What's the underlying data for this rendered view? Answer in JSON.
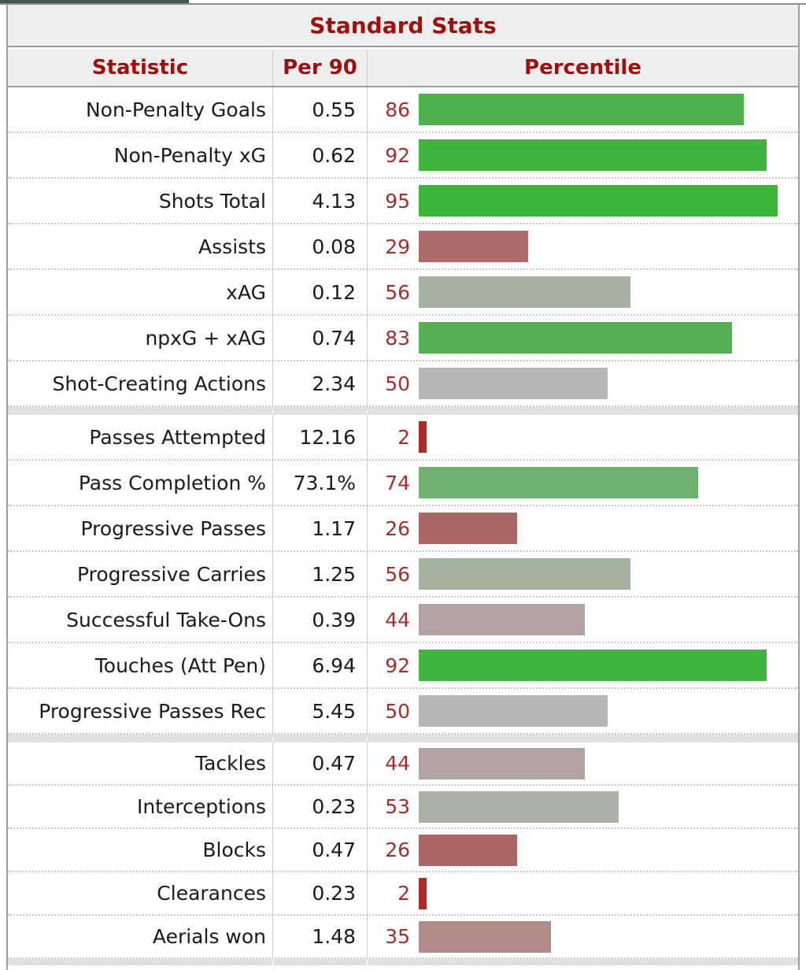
{
  "title": "Standard Stats",
  "columns": {
    "statistic": "Statistic",
    "per90": "Per 90",
    "percentile": "Percentile"
  },
  "colors": {
    "header_text_red": "#a00e0e",
    "percentile_number_red": "#a42d2d",
    "header_background": "#eeeeee",
    "separator_band": "#e0e0e0",
    "outer_border": "#9c9c9c",
    "tab_remnant": "#46554c",
    "bar_green_high": "#3bb43b",
    "bar_gray_mid": "#b6b6b6",
    "bar_red_low": "#b12828"
  },
  "chart_data": {
    "type": "bar",
    "orientation": "horizontal",
    "title": "Standard Stats",
    "xlabel": "Percentile",
    "xlim": [
      0,
      100
    ],
    "legend": "none",
    "groups": [
      [
        {
          "statistic": "Non-Penalty Goals",
          "per90": "0.55",
          "percentile": 86,
          "bar_color": "#4cb04c"
        },
        {
          "statistic": "Non-Penalty xG",
          "per90": "0.62",
          "percentile": 92,
          "bar_color": "#3fb43f"
        },
        {
          "statistic": "Shots Total",
          "per90": "4.13",
          "percentile": 95,
          "bar_color": "#3bb63b"
        },
        {
          "statistic": "Assists",
          "per90": "0.08",
          "percentile": 29,
          "bar_color": "#ad6c6c"
        },
        {
          "statistic": "xAG",
          "per90": "0.12",
          "percentile": 56,
          "bar_color": "#a4b29f"
        },
        {
          "statistic": "npxG + xAG",
          "per90": "0.74",
          "percentile": 83,
          "bar_color": "#54ae54"
        },
        {
          "statistic": "Shot-Creating Actions",
          "per90": "2.34",
          "percentile": 50,
          "bar_color": "#b6b6b6"
        }
      ],
      [
        {
          "statistic": "Passes Attempted",
          "per90": "12.16",
          "percentile": 2,
          "bar_color": "#b12828"
        },
        {
          "statistic": "Pass Completion %",
          "per90": "73.1%",
          "percentile": 74,
          "bar_color": "#70b170"
        },
        {
          "statistic": "Progressive Passes",
          "per90": "1.17",
          "percentile": 26,
          "bar_color": "#ab6565"
        },
        {
          "statistic": "Progressive Carries",
          "per90": "1.25",
          "percentile": 56,
          "bar_color": "#a4b29f"
        },
        {
          "statistic": "Successful Take-Ons",
          "per90": "0.39",
          "percentile": 44,
          "bar_color": "#b2a2a2"
        },
        {
          "statistic": "Touches (Att Pen)",
          "per90": "6.94",
          "percentile": 92,
          "bar_color": "#3fb43f"
        },
        {
          "statistic": "Progressive Passes Rec",
          "per90": "5.45",
          "percentile": 50,
          "bar_color": "#b6b6b6"
        }
      ],
      [
        {
          "statistic": "Tackles",
          "per90": "0.47",
          "percentile": 44,
          "bar_color": "#b2a2a2"
        },
        {
          "statistic": "Interceptions",
          "per90": "0.23",
          "percentile": 53,
          "bar_color": "#a9b2a5"
        },
        {
          "statistic": "Blocks",
          "per90": "0.47",
          "percentile": 26,
          "bar_color": "#ab6565"
        },
        {
          "statistic": "Clearances",
          "per90": "0.23",
          "percentile": 2,
          "bar_color": "#b12828"
        },
        {
          "statistic": "Aerials won",
          "per90": "1.48",
          "percentile": 35,
          "bar_color": "#b18a8a"
        }
      ]
    ]
  }
}
